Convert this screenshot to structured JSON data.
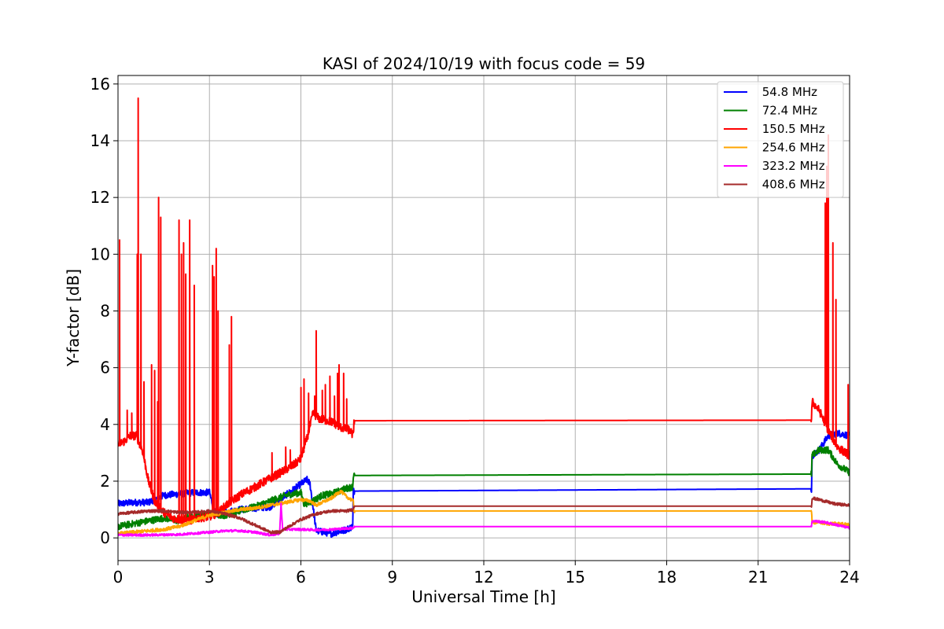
{
  "chart_data": {
    "type": "line",
    "title": "KASI of 2024/10/19 with focus code = 59",
    "xlabel": "Universal Time [h]",
    "ylabel": "Y-factor [dB]",
    "xlim": [
      0,
      24
    ],
    "ylim": [
      -0.8,
      16.3
    ],
    "xticks": [
      0,
      3,
      6,
      9,
      12,
      15,
      18,
      21,
      24
    ],
    "yticks": [
      0,
      2,
      4,
      6,
      8,
      10,
      12,
      14,
      16
    ],
    "grid": true,
    "legend_position": "upper right",
    "series": [
      {
        "name": " 54.8 MHz",
        "color": "#0000ff",
        "noise": 0.12,
        "x": [
          0,
          0.5,
          1,
          1.5,
          2,
          2.5,
          3,
          3.2,
          3.5,
          4,
          4.5,
          5,
          5.5,
          6,
          6.2,
          6.3,
          6.5,
          7,
          7.5,
          7.7,
          7.72,
          22.75,
          22.77,
          23,
          23.3,
          23.6,
          24
        ],
        "y": [
          1.2,
          1.25,
          1.25,
          1.5,
          1.55,
          1.6,
          1.6,
          0.8,
          0.9,
          1.0,
          1.05,
          1.1,
          1.5,
          1.9,
          2.05,
          1.9,
          0.25,
          0.15,
          0.3,
          0.4,
          1.65,
          1.73,
          2.9,
          3.1,
          3.6,
          3.7,
          3.6
        ]
      },
      {
        "name": " 72.4 MHz",
        "color": "#008000",
        "noise": 0.12,
        "x": [
          0,
          0.5,
          1,
          1.5,
          2,
          2.5,
          3,
          3.5,
          4,
          4.5,
          5,
          5.5,
          6,
          6.1,
          6.3,
          6.7,
          7,
          7.5,
          7.7,
          7.72,
          22.75,
          22.77,
          23,
          23.3,
          23.6,
          24
        ],
        "y": [
          0.4,
          0.5,
          0.6,
          0.7,
          0.6,
          0.8,
          0.85,
          0.8,
          0.95,
          1.1,
          1.3,
          1.5,
          1.6,
          1.2,
          1.25,
          1.5,
          1.55,
          1.75,
          1.8,
          2.2,
          2.25,
          2.9,
          3.1,
          3.1,
          2.6,
          2.3
        ]
      },
      {
        "name": " 150.5 MHz",
        "color": "#ff0000",
        "noise": 0.15,
        "x": [
          0,
          0.2,
          0.4,
          0.6,
          0.8,
          1.0,
          1.2,
          1.5,
          1.8,
          2.0,
          2.3,
          2.6,
          3.0,
          3.3,
          3.6,
          4.0,
          4.5,
          5.0,
          5.5,
          5.8,
          6.0,
          6.2,
          6.4,
          6.6,
          7.0,
          7.3,
          7.6,
          7.72,
          7.74,
          22.75,
          22.77,
          23.0,
          23.3,
          23.6,
          24
        ],
        "y": [
          3.3,
          3.4,
          3.6,
          3.6,
          3.1,
          2.0,
          1.3,
          0.9,
          0.7,
          0.65,
          0.6,
          0.7,
          0.75,
          0.9,
          1.2,
          1.5,
          1.8,
          2.1,
          2.4,
          2.6,
          2.8,
          3.5,
          4.4,
          4.2,
          4.1,
          3.9,
          3.8,
          3.6,
          4.13,
          4.15,
          4.8,
          4.5,
          3.8,
          3.2,
          2.9
        ]
      },
      {
        "name": " 254.6 MHz",
        "color": "#ffa500",
        "noise": 0.06,
        "x": [
          0,
          0.5,
          1,
          1.5,
          2,
          2.5,
          3,
          3.5,
          4,
          4.5,
          5,
          5.5,
          6,
          6.3,
          6.5,
          7.0,
          7.3,
          7.5,
          7.72,
          7.74,
          22.75,
          22.77,
          23,
          23.3,
          23.6,
          24
        ],
        "y": [
          0.15,
          0.2,
          0.25,
          0.3,
          0.4,
          0.6,
          0.8,
          0.9,
          1.0,
          1.05,
          1.15,
          1.25,
          1.35,
          1.3,
          1.15,
          1.4,
          1.65,
          1.45,
          1.3,
          0.95,
          0.95,
          0.55,
          0.55,
          0.5,
          0.5,
          0.45
        ]
      },
      {
        "name": " 323.2 MHz",
        "color": "#ff00ff",
        "noise": 0.04,
        "x": [
          0,
          1,
          2,
          3,
          3.5,
          4,
          4.5,
          5,
          5.3,
          5.35,
          5.4,
          6,
          6.5,
          7,
          7.72,
          7.74,
          22.75,
          22.77,
          23.2,
          23.6,
          24
        ],
        "y": [
          0.1,
          0.1,
          0.12,
          0.2,
          0.25,
          0.25,
          0.2,
          0.1,
          0.15,
          1.2,
          0.3,
          0.3,
          0.28,
          0.3,
          0.35,
          0.4,
          0.4,
          0.6,
          0.55,
          0.45,
          0.35
        ]
      },
      {
        "name": " 408.6 MHz",
        "color": "#a52a2a",
        "noise": 0.05,
        "x": [
          0,
          0.5,
          1,
          1.5,
          2,
          2.5,
          3,
          3.5,
          4,
          4.5,
          5,
          5.3,
          5.6,
          6,
          6.5,
          7,
          7.5,
          7.72,
          7.74,
          22.75,
          22.77,
          23,
          23.5,
          24
        ],
        "y": [
          0.85,
          0.9,
          0.95,
          0.95,
          0.9,
          0.9,
          0.95,
          0.85,
          0.7,
          0.45,
          0.2,
          0.2,
          0.4,
          0.65,
          0.85,
          0.95,
          0.95,
          1.0,
          1.12,
          1.12,
          1.4,
          1.35,
          1.2,
          1.15
        ]
      }
    ],
    "spikes": {
      "series_index": 2,
      "points": [
        [
          0.05,
          10.5
        ],
        [
          0.3,
          4.5
        ],
        [
          0.45,
          4.4
        ],
        [
          0.63,
          10.0
        ],
        [
          0.66,
          15.5
        ],
        [
          0.75,
          10.0
        ],
        [
          0.85,
          5.5
        ],
        [
          1.1,
          6.1
        ],
        [
          1.2,
          5.9
        ],
        [
          1.3,
          4.8
        ],
        [
          1.33,
          12.0
        ],
        [
          1.4,
          11.3
        ],
        [
          2.0,
          11.2
        ],
        [
          2.08,
          10.0
        ],
        [
          2.15,
          10.4
        ],
        [
          2.22,
          9.3
        ],
        [
          2.35,
          11.2
        ],
        [
          2.5,
          8.9
        ],
        [
          3.1,
          9.6
        ],
        [
          3.15,
          9.2
        ],
        [
          3.22,
          10.2
        ],
        [
          3.28,
          8.0
        ],
        [
          3.65,
          6.8
        ],
        [
          3.72,
          7.8
        ],
        [
          5.05,
          3.0
        ],
        [
          5.5,
          3.2
        ],
        [
          5.65,
          3.1
        ],
        [
          6.0,
          5.3
        ],
        [
          6.1,
          5.6
        ],
        [
          6.25,
          5.1
        ],
        [
          6.45,
          5.0
        ],
        [
          6.5,
          7.3
        ],
        [
          6.7,
          5.2
        ],
        [
          6.8,
          5.4
        ],
        [
          6.95,
          5.7
        ],
        [
          7.1,
          5.0
        ],
        [
          7.2,
          5.8
        ],
        [
          7.25,
          6.1
        ],
        [
          7.4,
          5.8
        ],
        [
          7.5,
          4.9
        ],
        [
          23.2,
          11.8
        ],
        [
          23.25,
          13.1
        ],
        [
          23.3,
          14.2
        ],
        [
          23.45,
          10.4
        ],
        [
          23.55,
          8.4
        ],
        [
          23.95,
          5.4
        ]
      ]
    }
  }
}
